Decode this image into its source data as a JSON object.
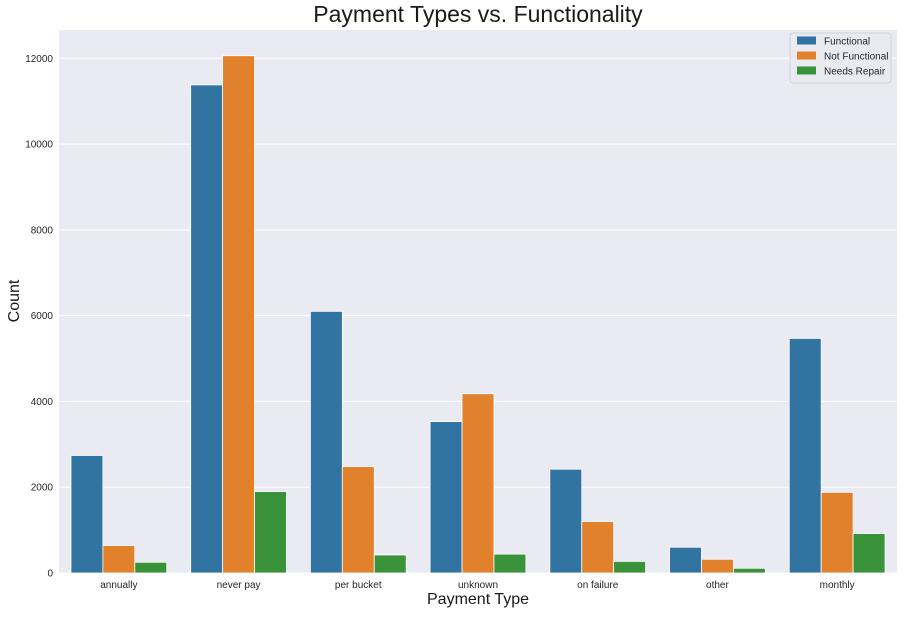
{
  "chart_data": {
    "type": "bar",
    "title": "Payment Types vs. Functionality",
    "xlabel": "Payment Type",
    "ylabel": "Count",
    "categories": [
      "annually",
      "never pay",
      "per bucket",
      "unknown",
      "on failure",
      "other",
      "monthly"
    ],
    "series": [
      {
        "name": "Functional",
        "color": "#3274a1",
        "values": [
          2740,
          11380,
          6100,
          3530,
          2420,
          600,
          5470
        ]
      },
      {
        "name": "Not Functional",
        "color": "#e1812c",
        "values": [
          640,
          12060,
          2480,
          4180,
          1200,
          320,
          1880
        ]
      },
      {
        "name": "Needs Repair",
        "color": "#3a923a",
        "values": [
          250,
          1900,
          420,
          440,
          270,
          110,
          920
        ]
      }
    ],
    "ylim": [
      0,
      12660
    ],
    "yticks": [
      0,
      2000,
      4000,
      6000,
      8000,
      10000,
      12000
    ],
    "grid": true,
    "legend_position": "top-right",
    "background_color": "#eaeaf2",
    "grid_color": "#ffffff"
  }
}
